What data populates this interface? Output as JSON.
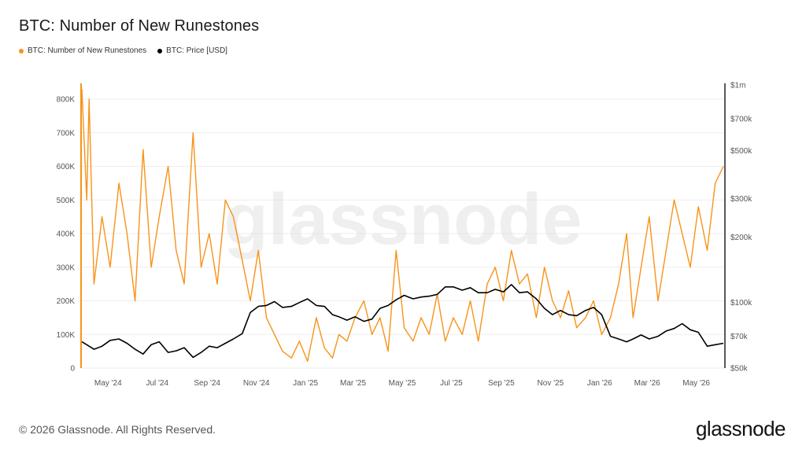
{
  "header": {
    "title": "BTC: Number of New Runestones"
  },
  "legend": [
    {
      "label": "BTC: Number of New Runestones",
      "color": "#f7931a"
    },
    {
      "label": "BTC: Price [USD]",
      "color": "#000000"
    }
  ],
  "watermark": "glassnode",
  "footer": {
    "copyright": "© 2026 Glassnode. All Rights Reserved.",
    "logo": "glassnode"
  },
  "chart_data": {
    "type": "line",
    "x_ticks": [
      "May '24",
      "Jul '24",
      "Sep '24",
      "Nov '24",
      "Jan '25",
      "Mar '25",
      "May '25",
      "Jul '25",
      "Sep '25",
      "Nov '25",
      "Jan '26",
      "Mar '26",
      "May '26"
    ],
    "y_left": {
      "ticks": [
        "0",
        "100K",
        "200K",
        "300K",
        "400K",
        "500K",
        "600K",
        "700K",
        "800K"
      ],
      "range": [
        0,
        800000
      ]
    },
    "y_right": {
      "ticks": [
        "$50k",
        "$70k",
        "$100k",
        "$200k",
        "$300k",
        "$500k",
        "$700k",
        "$1m"
      ],
      "values": [
        50000,
        70000,
        100000,
        200000,
        300000,
        500000,
        700000,
        1000000
      ],
      "scale": "log"
    },
    "x": [
      "2024-04-20",
      "2024-04-26",
      "2024-04-29",
      "2024-05-05",
      "2024-05-15",
      "2024-05-25",
      "2024-06-05",
      "2024-06-15",
      "2024-06-25",
      "2024-07-05",
      "2024-07-15",
      "2024-07-25",
      "2024-08-05",
      "2024-08-15",
      "2024-08-25",
      "2024-09-05",
      "2024-09-15",
      "2024-09-25",
      "2024-10-05",
      "2024-10-15",
      "2024-10-25",
      "2024-11-05",
      "2024-11-15",
      "2024-11-25",
      "2024-12-05",
      "2024-12-15",
      "2024-12-25",
      "2025-01-05",
      "2025-01-15",
      "2025-01-25",
      "2025-02-05",
      "2025-02-15",
      "2025-02-25",
      "2025-03-05",
      "2025-03-15",
      "2025-03-25",
      "2025-04-05",
      "2025-04-15",
      "2025-04-25",
      "2025-05-05",
      "2025-05-15",
      "2025-05-25",
      "2025-06-05",
      "2025-06-15",
      "2025-06-25",
      "2025-07-05",
      "2025-07-15",
      "2025-07-25",
      "2025-08-05",
      "2025-08-15",
      "2025-08-25",
      "2025-09-05",
      "2025-09-15",
      "2025-09-25",
      "2025-10-05",
      "2025-10-15",
      "2025-10-25",
      "2025-11-05",
      "2025-11-15",
      "2025-11-25",
      "2025-12-05",
      "2025-12-15",
      "2025-12-25",
      "2026-01-05",
      "2026-01-15",
      "2026-01-25",
      "2026-02-05",
      "2026-02-15",
      "2026-02-25",
      "2026-03-05",
      "2026-03-15",
      "2026-03-25",
      "2026-04-05",
      "2026-04-15",
      "2026-04-25",
      "2026-05-05",
      "2026-05-15",
      "2026-05-25",
      "2026-06-05",
      "2026-06-15",
      "2026-06-25"
    ],
    "series": [
      {
        "name": "BTC: Number of New Runestones",
        "axis": "left",
        "color": "#f7931a",
        "values": [
          830000,
          500000,
          800000,
          250000,
          450000,
          300000,
          550000,
          400000,
          200000,
          650000,
          300000,
          450000,
          600000,
          350000,
          250000,
          700000,
          300000,
          400000,
          250000,
          500000,
          450000,
          320000,
          200000,
          350000,
          150000,
          100000,
          50000,
          30000,
          80000,
          20000,
          150000,
          60000,
          30000,
          100000,
          80000,
          150000,
          200000,
          100000,
          150000,
          50000,
          350000,
          120000,
          80000,
          150000,
          100000,
          220000,
          80000,
          150000,
          100000,
          200000,
          80000,
          250000,
          300000,
          200000,
          350000,
          250000,
          280000,
          150000,
          300000,
          200000,
          150000,
          230000,
          120000,
          150000,
          200000,
          100000,
          150000,
          250000,
          400000,
          150000,
          300000,
          450000,
          200000,
          350000,
          500000,
          400000,
          300000,
          480000,
          350000,
          550000,
          600000
        ]
      },
      {
        "name": "BTC: Price [USD]",
        "axis": "right",
        "color": "#000000",
        "values": [
          66000,
          64000,
          63000,
          61000,
          63000,
          67000,
          68000,
          65000,
          61000,
          58000,
          64000,
          66000,
          59000,
          60000,
          62000,
          56000,
          59000,
          63000,
          62000,
          65000,
          68000,
          72000,
          90000,
          96000,
          97000,
          101000,
          95000,
          96000,
          100000,
          104000,
          97000,
          96000,
          88000,
          86000,
          83000,
          86000,
          82000,
          84000,
          94000,
          97000,
          103000,
          108000,
          104000,
          106000,
          107000,
          109000,
          118000,
          118000,
          114000,
          117000,
          111000,
          111000,
          115000,
          112000,
          121000,
          111000,
          112000,
          104000,
          94000,
          88000,
          92000,
          88000,
          87000,
          92000,
          95000,
          88000,
          70000,
          68000,
          66000,
          68000,
          71000,
          68000,
          70000,
          74000,
          76000,
          80000,
          75000,
          73000,
          63000,
          64000,
          65000
        ]
      }
    ]
  }
}
